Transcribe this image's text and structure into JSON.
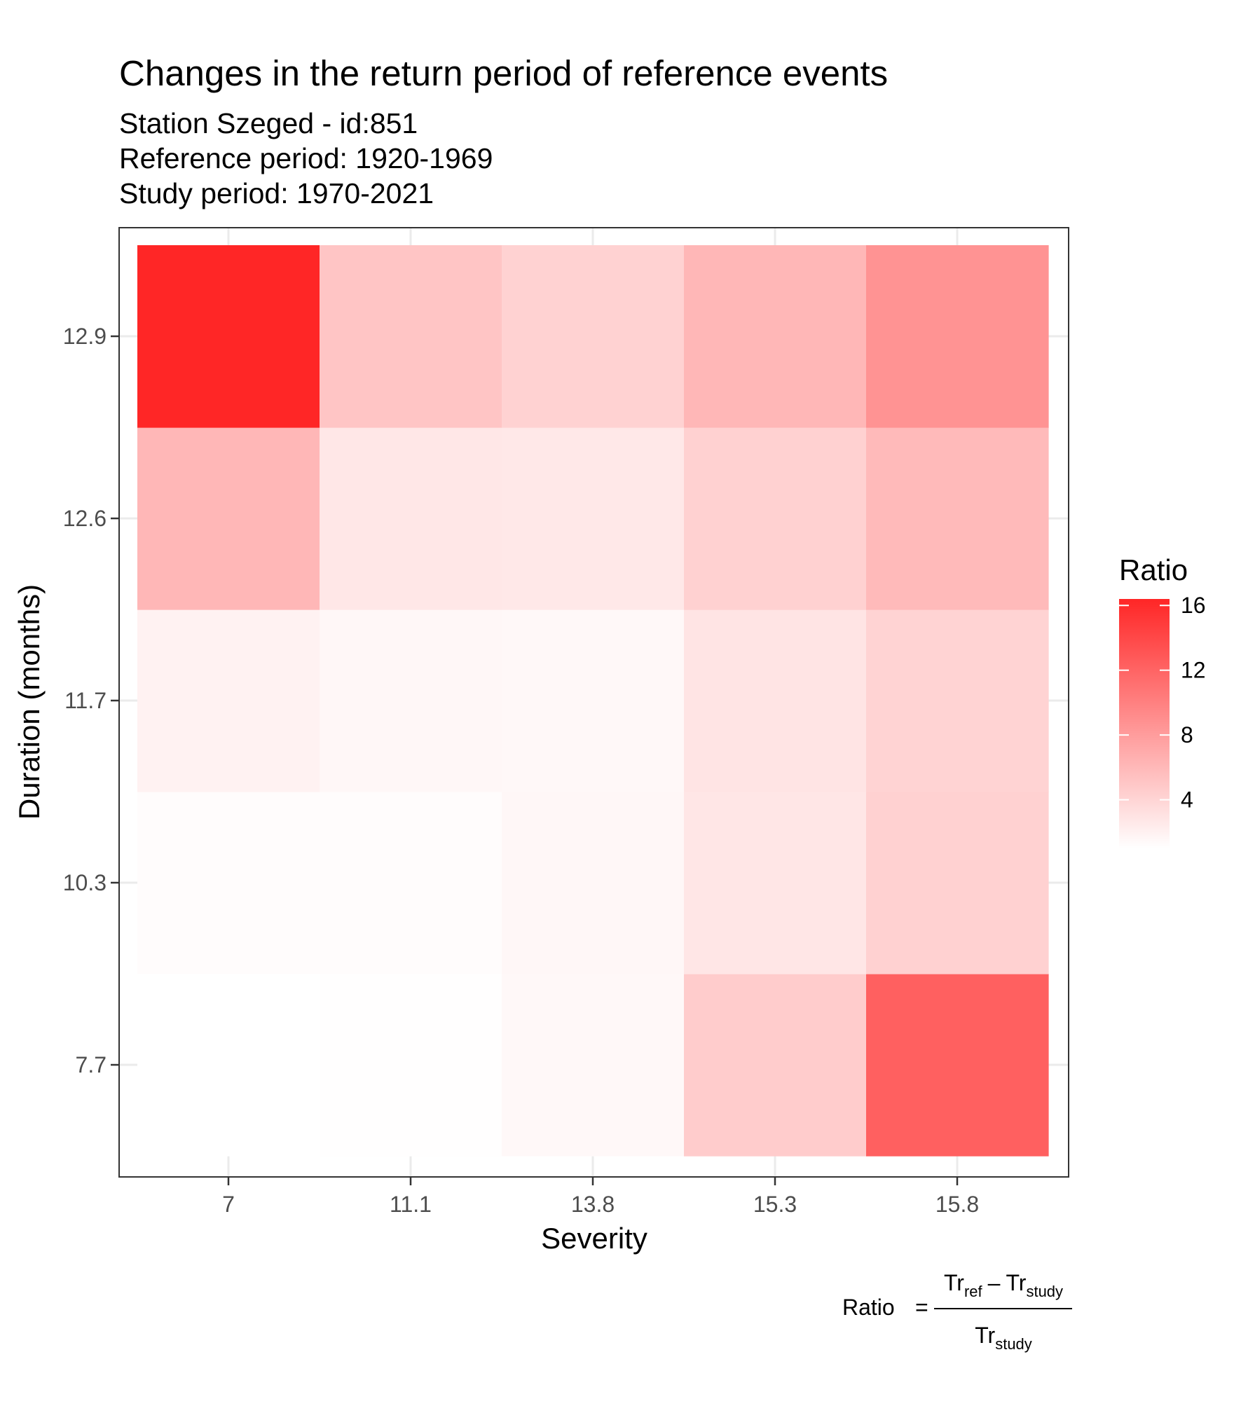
{
  "chart_data": {
    "type": "heatmap",
    "title": "Changes in the return period of reference events",
    "subtitle_lines": [
      "Station Szeged - id:851",
      "Reference period: 1920-1969",
      "Study period: 1970-2021"
    ],
    "xlabel": "Severity",
    "ylabel": "Duration (months)",
    "x_categories": [
      "7",
      "11.1",
      "13.8",
      "15.3",
      "15.8"
    ],
    "y_categories": [
      "7.7",
      "10.3",
      "11.7",
      "12.6",
      "12.9"
    ],
    "values": [
      [
        1.0,
        1.1,
        1.5,
        4.6,
        12.3
      ],
      [
        1.2,
        1.2,
        1.6,
        2.8,
        4.3
      ],
      [
        1.9,
        1.6,
        1.5,
        2.9,
        4.1
      ],
      [
        6.1,
        2.7,
        2.6,
        4.3,
        5.9
      ],
      [
        16.4,
        5.1,
        4.2,
        6.1,
        8.7
      ]
    ],
    "value_range": [
      1,
      16.4
    ],
    "colors": {
      "low": "#ffffff",
      "high": "#ff2626"
    },
    "legend": {
      "title": "Ratio",
      "ticks": [
        4,
        8,
        12,
        16
      ],
      "position": "right"
    },
    "grid": true,
    "caption": {
      "lhs": "Ratio",
      "equals": "=",
      "numerator": {
        "a": "Tr",
        "a_sub": "ref",
        "op": "–",
        "b": "Tr",
        "b_sub": "study"
      },
      "denominator": {
        "a": "Tr",
        "a_sub": "study"
      }
    }
  }
}
